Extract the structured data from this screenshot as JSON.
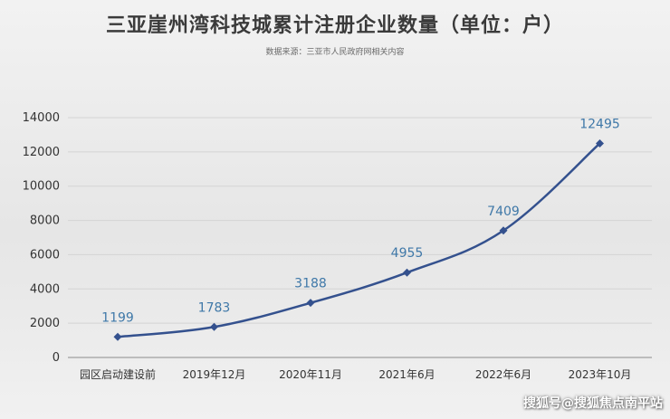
{
  "chart_data": {
    "type": "line",
    "title": "三亚崖州湾科技城累计注册企业数量（单位：户）",
    "subtitle": "数据来源：三亚市人民政府网相关内容",
    "categories": [
      "园区启动建设前",
      "2019年12月",
      "2020年11月",
      "2021年6月",
      "2022年6月",
      "2023年10月"
    ],
    "values": [
      1199,
      1783,
      3188,
      4955,
      7409,
      12495
    ],
    "ylim": [
      0,
      14000
    ],
    "yticks": [
      0,
      2000,
      4000,
      6000,
      8000,
      10000,
      12000,
      14000
    ],
    "grid": true,
    "data_labels": true,
    "colors": {
      "line": "#34518e",
      "label": "#3f78a8",
      "grid": "#d4d4d4"
    }
  },
  "watermark": "搜狐号@搜狐焦点南平站"
}
